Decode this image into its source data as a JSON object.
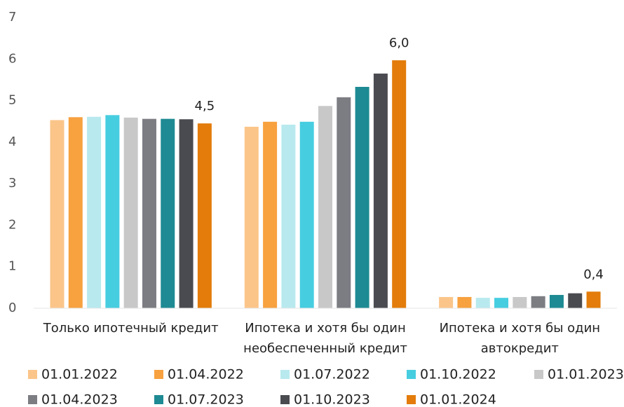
{
  "chart_data": {
    "type": "bar",
    "categories": [
      "Только ипотечный кредит",
      "Ипотека и хотя бы один необеспеченный кредит",
      "Ипотека и хотя бы один автокредит"
    ],
    "series": [
      {
        "name": "01.01.2022",
        "color": "#fbc58a",
        "values": [
          4.53,
          4.37,
          0.27
        ]
      },
      {
        "name": "01.04.2022",
        "color": "#f7a13f",
        "values": [
          4.6,
          4.49,
          0.27
        ]
      },
      {
        "name": "01.07.2022",
        "color": "#b8e9ee",
        "values": [
          4.61,
          4.42,
          0.25
        ]
      },
      {
        "name": "01.10.2022",
        "color": "#47cde0",
        "values": [
          4.65,
          4.49,
          0.25
        ]
      },
      {
        "name": "01.01.2023",
        "color": "#c9c8c9",
        "values": [
          4.59,
          4.87,
          0.27
        ]
      },
      {
        "name": "01.04.2023",
        "color": "#7c7d83",
        "values": [
          4.56,
          5.08,
          0.29
        ]
      },
      {
        "name": "01.07.2023",
        "color": "#1e8a93",
        "values": [
          4.56,
          5.33,
          0.32
        ]
      },
      {
        "name": "01.10.2023",
        "color": "#4a4b50",
        "values": [
          4.55,
          5.65,
          0.36
        ]
      },
      {
        "name": "01.01.2024",
        "color": "#e37c0b",
        "values": [
          4.45,
          5.97,
          0.4
        ],
        "value_labels": [
          "4,5",
          "6,0",
          "0,4"
        ]
      }
    ],
    "ylim": [
      0,
      7
    ],
    "yticks": [
      0,
      1,
      2,
      3,
      4,
      5,
      6,
      7
    ],
    "grid": false,
    "legend": "bottom"
  }
}
